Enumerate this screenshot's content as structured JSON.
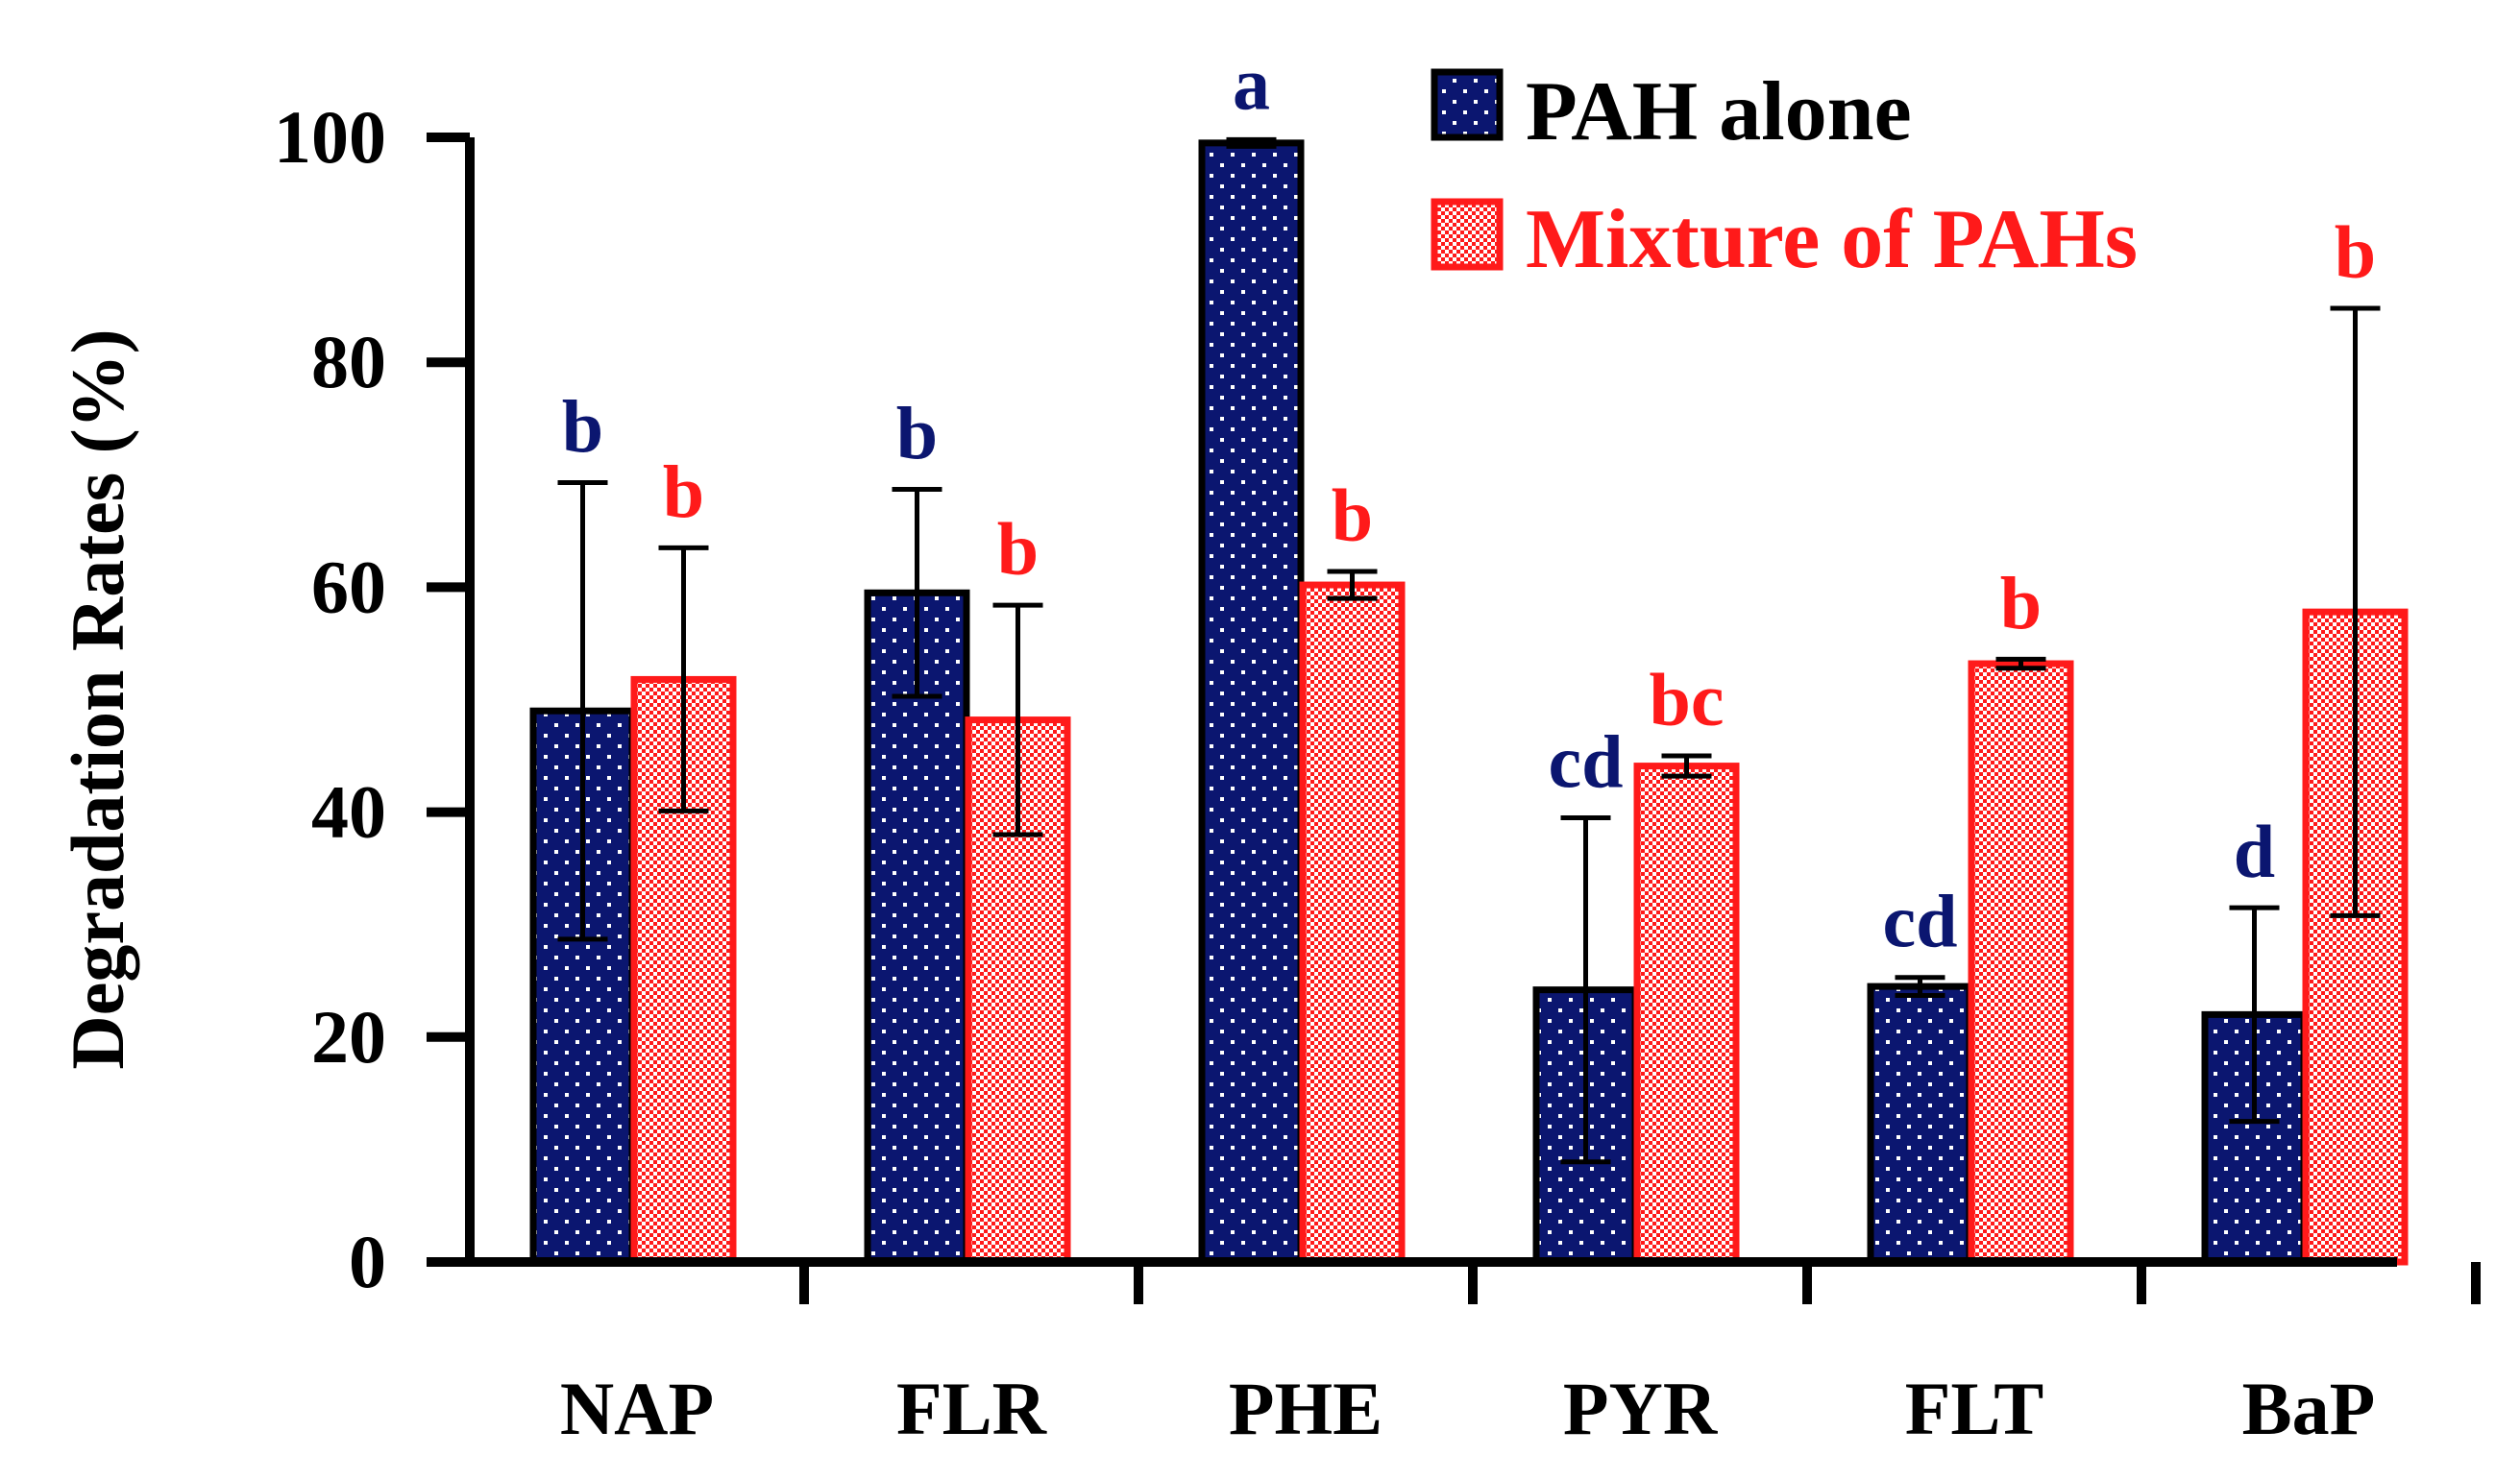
{
  "chart_data": {
    "type": "bar",
    "ylabel": "Degradation Rates (%)",
    "xlabel": "",
    "ylim": [
      0,
      100
    ],
    "yticks": [
      0,
      20,
      40,
      60,
      80,
      100
    ],
    "categories": [
      "NAP",
      "FLR",
      "PHE",
      "PYR",
      "FLT",
      "BaP"
    ],
    "legend_position": "top-right",
    "series": [
      {
        "name": "PAH alone",
        "color": "#0b1670",
        "pattern": "dots",
        "values": [
          49,
          59.5,
          99.5,
          24.2,
          24.5,
          22
        ],
        "error": [
          20.3,
          9.2,
          0.3,
          15.3,
          0.8,
          9.5
        ],
        "sig": [
          "b",
          "b",
          "a",
          "cd",
          "cd",
          "d"
        ]
      },
      {
        "name": "Mixture of PAHs",
        "color": "#ff1a1a",
        "pattern": "checker",
        "values": [
          51.8,
          48.2,
          60.2,
          44.1,
          53.2,
          57.8
        ],
        "error": [
          11.7,
          10.2,
          1.2,
          0.9,
          0.4,
          27.0
        ],
        "sig": [
          "b",
          "b",
          "b",
          "bc",
          "b",
          "b"
        ]
      }
    ]
  }
}
